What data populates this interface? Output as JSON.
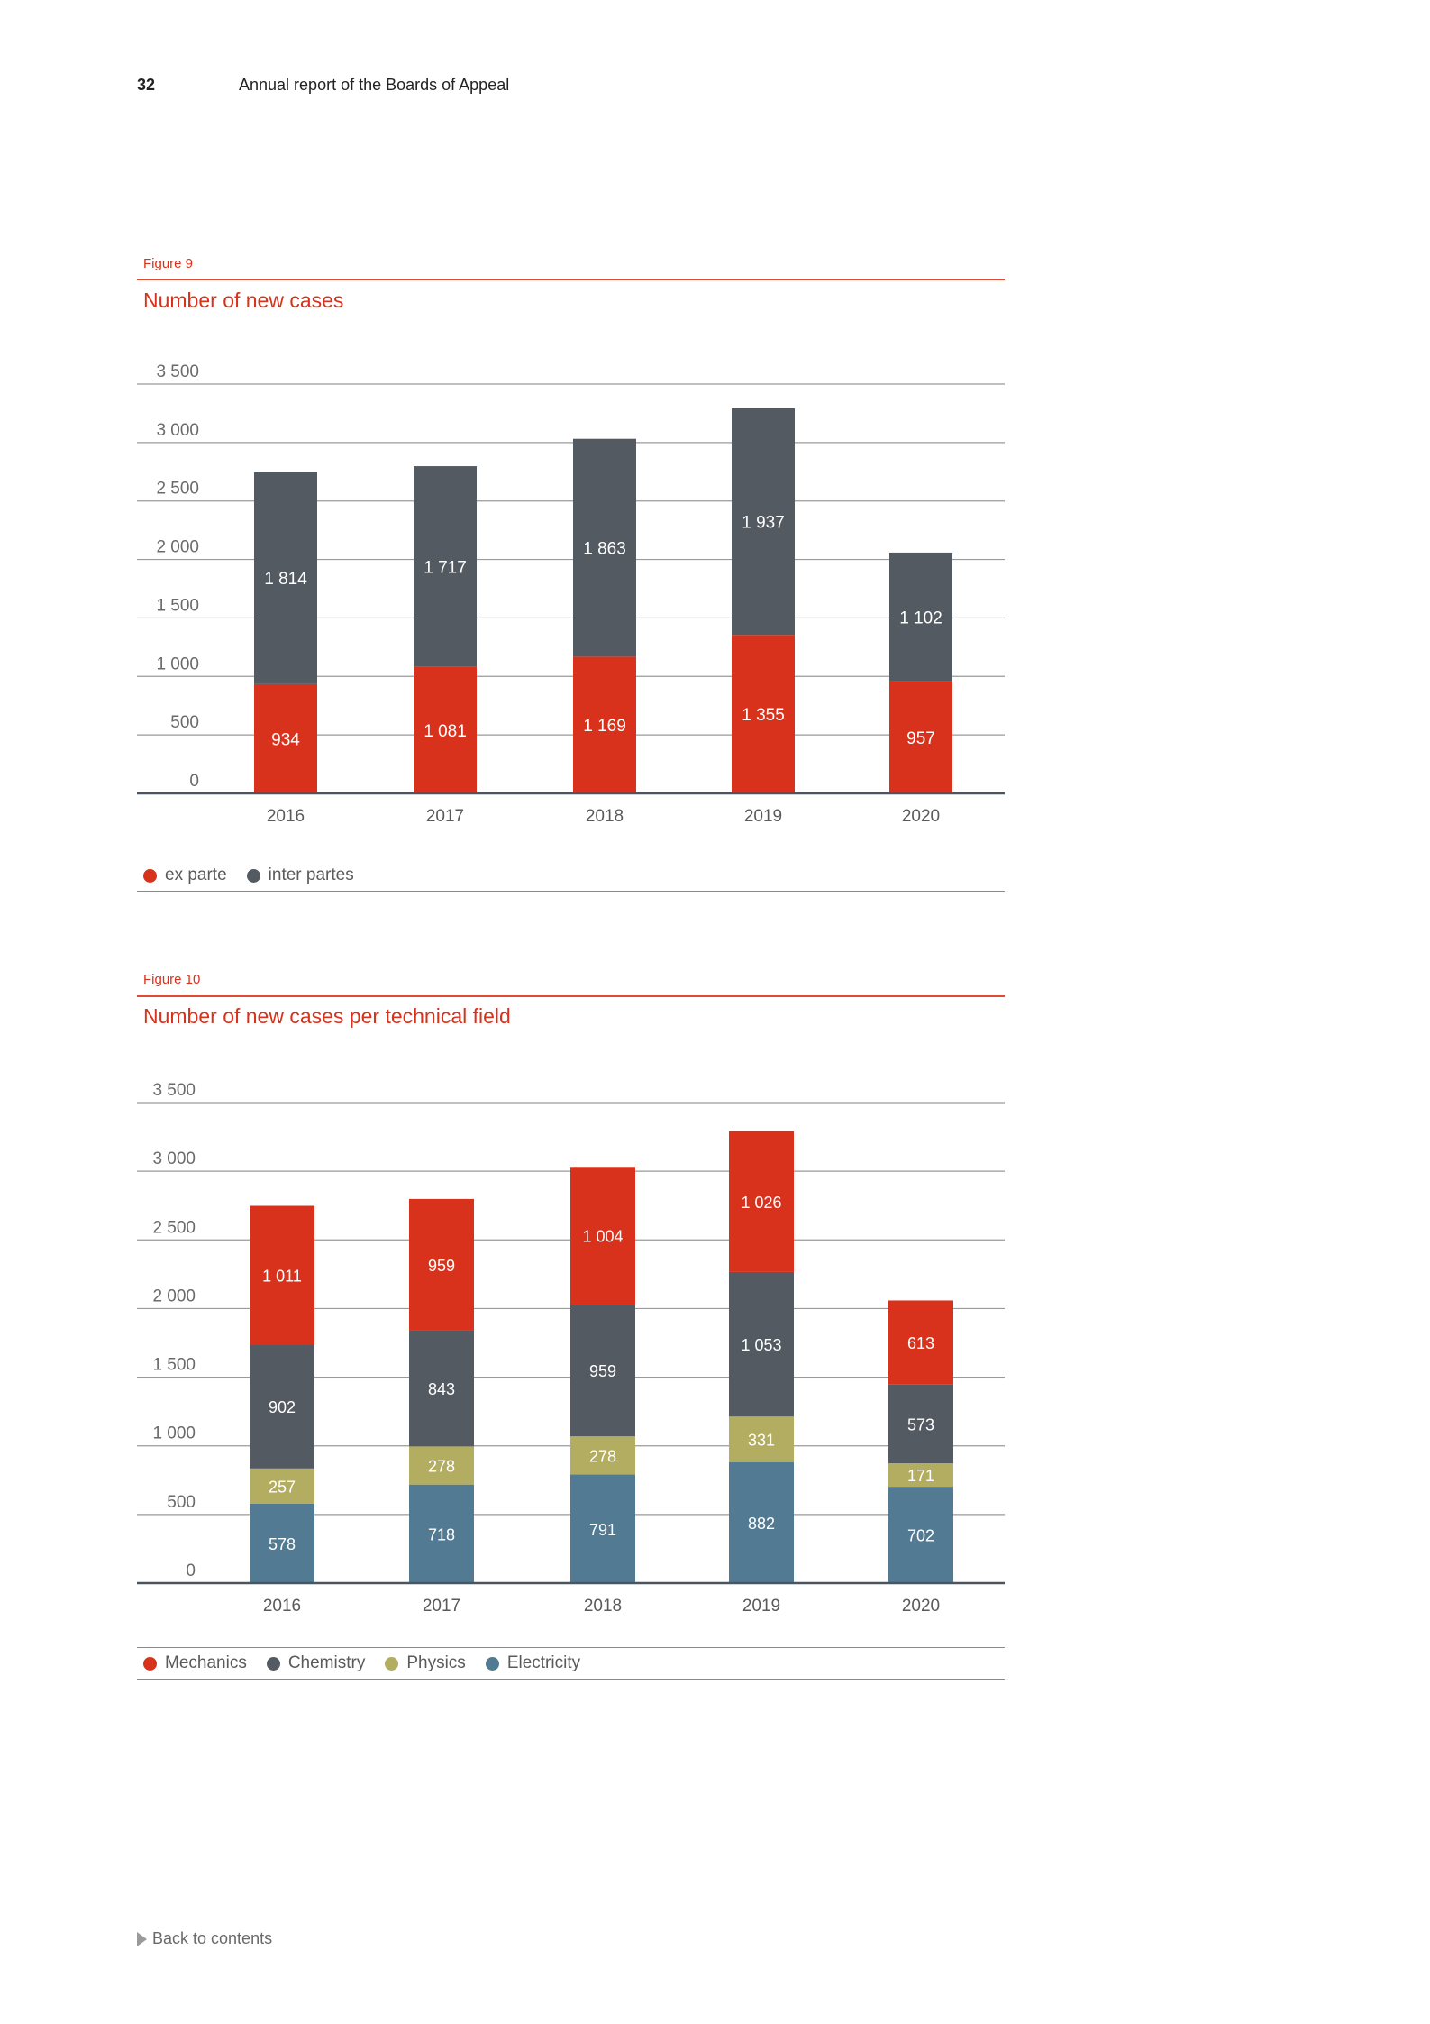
{
  "header": {
    "page_number": "32",
    "title": "Annual report of the Boards of Appeal"
  },
  "figure9": {
    "label": "Figure 9",
    "title": "Number of new cases",
    "legend": [
      {
        "label": "ex parte",
        "color": "#d9321c"
      },
      {
        "label": "inter partes",
        "color": "#545a61"
      }
    ]
  },
  "figure10": {
    "label": "Figure 10",
    "title": "Number of new cases per technical field",
    "legend": [
      {
        "label": "Mechanics",
        "color": "#d9321c"
      },
      {
        "label": "Chemistry",
        "color": "#545a61"
      },
      {
        "label": "Physics",
        "color": "#b3ad61"
      },
      {
        "label": "Electricity",
        "color": "#527a92"
      }
    ]
  },
  "footer": {
    "back_label": "Back to contents",
    "back_icon": "triangle-right-icon"
  },
  "chart_data": [
    {
      "type": "bar",
      "stacked": true,
      "title": "Number of new cases",
      "categories": [
        "2016",
        "2017",
        "2018",
        "2019",
        "2020"
      ],
      "ylim": [
        0,
        3500
      ],
      "yticks": [
        0,
        500,
        1000,
        1500,
        2000,
        2500,
        3000,
        3500
      ],
      "ytick_labels": [
        "0",
        "500",
        "1 000",
        "1 500",
        "2 000",
        "2 500",
        "3 000",
        "3 500"
      ],
      "grid": true,
      "legend_position": "bottom-left",
      "series": [
        {
          "name": "ex parte",
          "color": "#d9321c",
          "values": [
            934,
            1081,
            1169,
            1355,
            957
          ],
          "labels": [
            "934",
            "1 081",
            "1 169",
            "1 355",
            "957"
          ]
        },
        {
          "name": "inter partes",
          "color": "#545a61",
          "values": [
            1814,
            1717,
            1863,
            1937,
            1102
          ],
          "labels": [
            "1 814",
            "1 717",
            "1 863",
            "1 937",
            "1 102"
          ]
        }
      ]
    },
    {
      "type": "bar",
      "stacked": true,
      "title": "Number of new cases per technical field",
      "categories": [
        "2016",
        "2017",
        "2018",
        "2019",
        "2020"
      ],
      "ylim": [
        0,
        3500
      ],
      "yticks": [
        0,
        500,
        1000,
        1500,
        2000,
        2500,
        3000,
        3500
      ],
      "ytick_labels": [
        "0",
        "500",
        "1 000",
        "1 500",
        "2 000",
        "2 500",
        "3 000",
        "3 500"
      ],
      "grid": true,
      "legend_position": "bottom-left",
      "series": [
        {
          "name": "Electricity",
          "color": "#527a92",
          "values": [
            578,
            718,
            791,
            882,
            702
          ],
          "labels": [
            "578",
            "718",
            "791",
            "882",
            "702"
          ]
        },
        {
          "name": "Physics",
          "color": "#b3ad61",
          "values": [
            257,
            278,
            278,
            331,
            171
          ],
          "labels": [
            "257",
            "278",
            "278",
            "331",
            "171"
          ]
        },
        {
          "name": "Chemistry",
          "color": "#545a61",
          "values": [
            902,
            843,
            959,
            1053,
            573
          ],
          "labels": [
            "902",
            "843",
            "959",
            "1 053",
            "573"
          ]
        },
        {
          "name": "Mechanics",
          "color": "#d9321c",
          "values": [
            1011,
            959,
            1004,
            1026,
            613
          ],
          "labels": [
            "1 011",
            "959",
            "1 004",
            "1 026",
            "613"
          ]
        }
      ]
    }
  ]
}
